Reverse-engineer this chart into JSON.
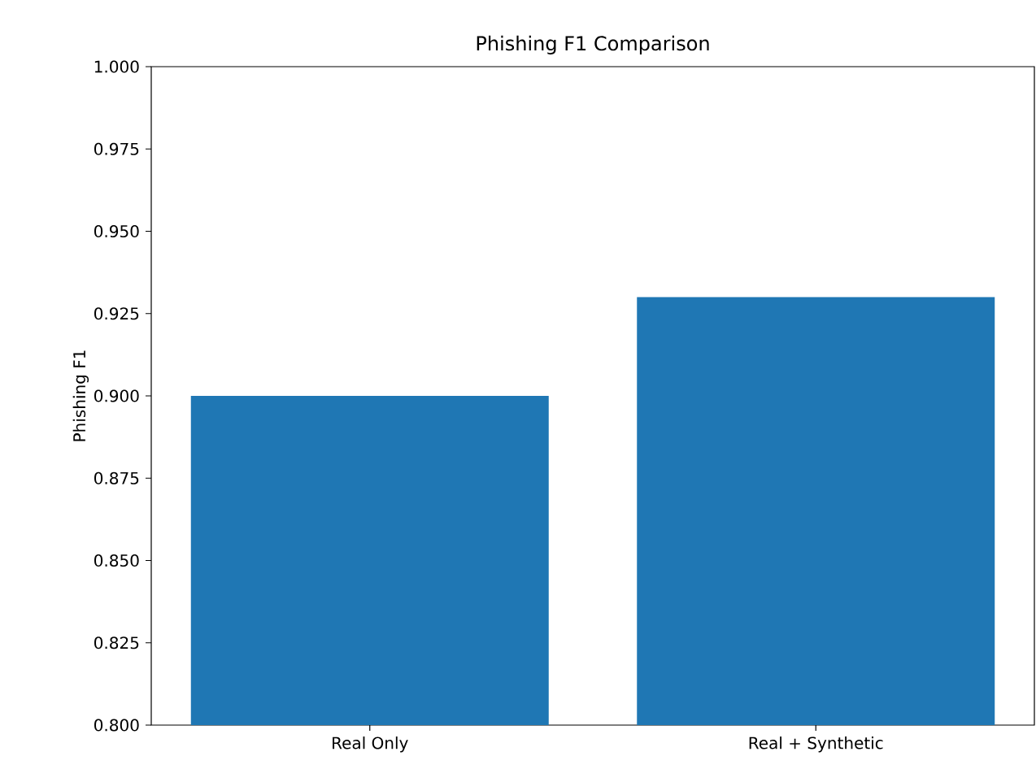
{
  "chart_data": {
    "type": "bar",
    "title": "Phishing F1 Comparison",
    "ylabel": "Phishing F1",
    "categories": [
      "Real Only",
      "Real + Synthetic"
    ],
    "values": [
      0.9,
      0.93
    ],
    "color": "#1f77b4",
    "ylim": [
      0.8,
      1.0
    ],
    "yticks": [
      {
        "value": 0.8,
        "label": "0.800"
      },
      {
        "value": 0.825,
        "label": "0.825"
      },
      {
        "value": 0.85,
        "label": "0.850"
      },
      {
        "value": 0.875,
        "label": "0.875"
      },
      {
        "value": 0.9,
        "label": "0.900"
      },
      {
        "value": 0.925,
        "label": "0.925"
      },
      {
        "value": 0.95,
        "label": "0.950"
      },
      {
        "value": 0.975,
        "label": "0.975"
      },
      {
        "value": 1.0,
        "label": "1.000"
      }
    ],
    "grid": false
  }
}
